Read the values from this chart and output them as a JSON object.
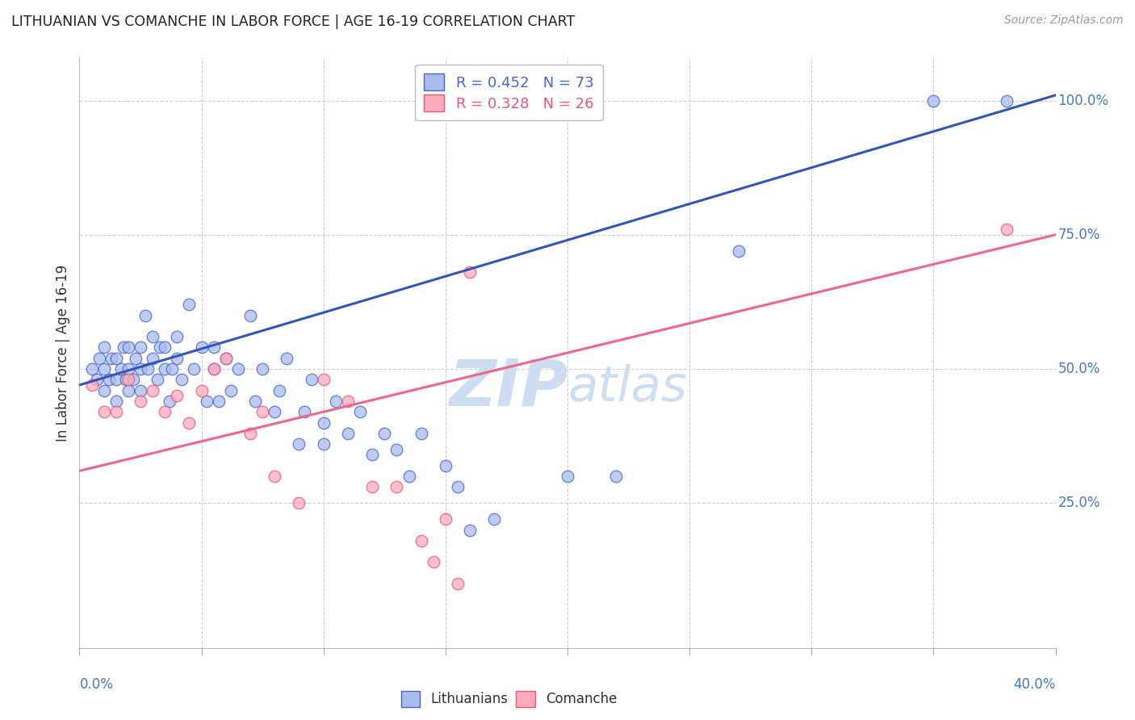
{
  "title": "LITHUANIAN VS COMANCHE IN LABOR FORCE | AGE 16-19 CORRELATION CHART",
  "source": "Source: ZipAtlas.com",
  "xlabel_bottom_left": "0.0%",
  "xlabel_bottom_right": "40.0%",
  "ylabel": "In Labor Force | Age 16-19",
  "right_yticks": [
    "100.0%",
    "75.0%",
    "50.0%",
    "25.0%"
  ],
  "right_ytick_vals": [
    1.0,
    0.75,
    0.5,
    0.25
  ],
  "xlim": [
    0.0,
    0.4
  ],
  "ylim": [
    -0.02,
    1.08
  ],
  "legend_blue": "R = 0.452   N = 73",
  "legend_pink": "R = 0.328   N = 26",
  "legend_label_blue": "Lithuanians",
  "legend_label_pink": "Comanche",
  "blue_fill_color": "#AABBEE",
  "blue_edge_color": "#4466CC",
  "pink_fill_color": "#FFAABB",
  "pink_edge_color": "#EE5577",
  "blue_line_color": "#3355BB",
  "pink_line_color": "#EE6688",
  "title_color": "#222222",
  "source_color": "#999999",
  "axis_label_color": "#4477CC",
  "grid_color": "#CCCCDD",
  "watermark_color": "#C5D8F0",
  "blue_scatter_x": [
    0.005,
    0.007,
    0.008,
    0.01,
    0.01,
    0.01,
    0.012,
    0.013,
    0.015,
    0.015,
    0.015,
    0.017,
    0.018,
    0.019,
    0.02,
    0.02,
    0.02,
    0.022,
    0.023,
    0.025,
    0.025,
    0.025,
    0.027,
    0.028,
    0.03,
    0.03,
    0.032,
    0.033,
    0.035,
    0.035,
    0.037,
    0.038,
    0.04,
    0.04,
    0.042,
    0.045,
    0.047,
    0.05,
    0.052,
    0.055,
    0.055,
    0.057,
    0.06,
    0.062,
    0.065,
    0.07,
    0.072,
    0.075,
    0.08,
    0.082,
    0.085,
    0.09,
    0.092,
    0.095,
    0.1,
    0.1,
    0.105,
    0.11,
    0.115,
    0.12,
    0.125,
    0.13,
    0.135,
    0.14,
    0.15,
    0.155,
    0.16,
    0.17,
    0.2,
    0.22,
    0.27,
    0.35,
    0.38
  ],
  "blue_scatter_y": [
    0.5,
    0.48,
    0.52,
    0.46,
    0.5,
    0.54,
    0.48,
    0.52,
    0.44,
    0.48,
    0.52,
    0.5,
    0.54,
    0.48,
    0.46,
    0.5,
    0.54,
    0.48,
    0.52,
    0.46,
    0.5,
    0.54,
    0.6,
    0.5,
    0.52,
    0.56,
    0.48,
    0.54,
    0.5,
    0.54,
    0.44,
    0.5,
    0.52,
    0.56,
    0.48,
    0.62,
    0.5,
    0.54,
    0.44,
    0.5,
    0.54,
    0.44,
    0.52,
    0.46,
    0.5,
    0.6,
    0.44,
    0.5,
    0.42,
    0.46,
    0.52,
    0.36,
    0.42,
    0.48,
    0.36,
    0.4,
    0.44,
    0.38,
    0.42,
    0.34,
    0.38,
    0.35,
    0.3,
    0.38,
    0.32,
    0.28,
    0.2,
    0.22,
    0.3,
    0.3,
    0.72,
    1.0,
    1.0
  ],
  "pink_scatter_x": [
    0.005,
    0.01,
    0.015,
    0.02,
    0.025,
    0.03,
    0.035,
    0.04,
    0.045,
    0.05,
    0.055,
    0.06,
    0.07,
    0.075,
    0.08,
    0.09,
    0.1,
    0.11,
    0.12,
    0.13,
    0.14,
    0.145,
    0.15,
    0.155,
    0.16,
    0.38
  ],
  "pink_scatter_y": [
    0.47,
    0.42,
    0.42,
    0.48,
    0.44,
    0.46,
    0.42,
    0.45,
    0.4,
    0.46,
    0.5,
    0.52,
    0.38,
    0.42,
    0.3,
    0.25,
    0.48,
    0.44,
    0.28,
    0.28,
    0.18,
    0.14,
    0.22,
    0.1,
    0.68,
    0.76
  ],
  "blue_line_x": [
    0.0,
    0.4
  ],
  "blue_line_y": [
    0.47,
    1.01
  ],
  "pink_line_x": [
    0.0,
    0.4
  ],
  "pink_line_y": [
    0.31,
    0.75
  ]
}
